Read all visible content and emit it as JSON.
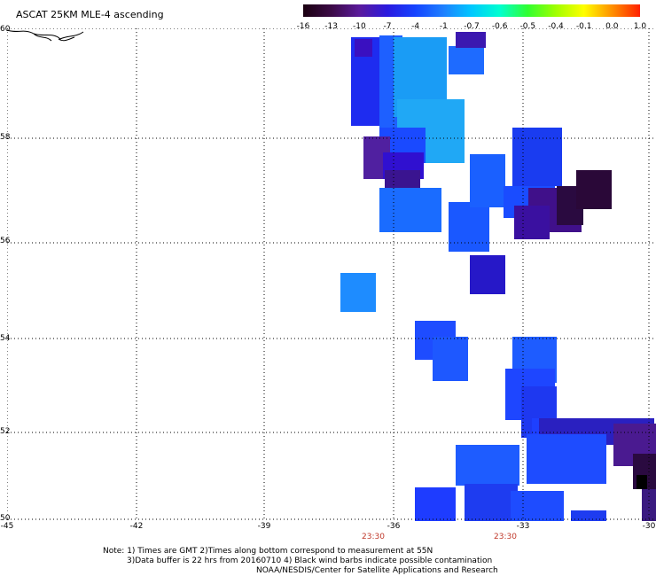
{
  "title": "ASCAT 25KM MLE-4 ascending",
  "colorbar": {
    "labels": [
      "-16",
      "-13",
      "-10",
      "-7",
      "-4",
      "-1",
      "-0.7",
      "-0.6",
      "-0.5",
      "-0.4",
      "-0.1",
      "0.0",
      "1.0"
    ],
    "colors": [
      "#1a0010",
      "#3b0a45",
      "#5b1a9b",
      "#2a1adf",
      "#1544ff",
      "#1e80ff",
      "#00c8ff",
      "#00ffd0",
      "#30ff30",
      "#a0ff00",
      "#ffff00",
      "#ff9000",
      "#ff2000"
    ]
  },
  "map": {
    "lat_labels": [
      "60",
      "58",
      "56",
      "54",
      "52",
      "50"
    ],
    "lon_labels": [
      "-45",
      "-42",
      "-39",
      "-36",
      "-33",
      "-30"
    ],
    "time_labels": [
      "23:30",
      "23:30"
    ]
  },
  "notes": {
    "line1": "Note: 1) Times are GMT 2)Times along bottom correspond to measurement at 55N",
    "line2": "3)Data buffer is 22 hrs from 20160710 4) Black wind barbs indicate possible contamination",
    "line3": "NOAA/NESDIS/Center for Satellite Applications and Research"
  }
}
